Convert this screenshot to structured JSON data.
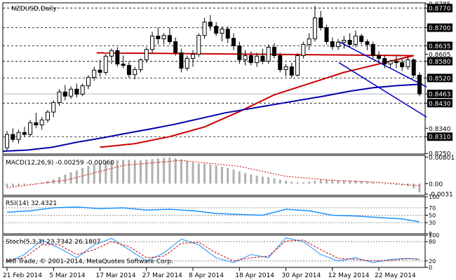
{
  "window": {
    "title": "NZDUSD,Daily",
    "footer": "Mill Trade, © 2001-2014, MetaQuotes Software Corp."
  },
  "colors": {
    "ma_red": "#cc0000",
    "ma_blue": "#0000b0",
    "channel": "#0000cc",
    "rsi": "#1e90ff",
    "stoch_main": "#1e90ff",
    "stoch_signal": "#cc0000",
    "macd_hist": "#b0b0b0",
    "macd_signal": "#cc0000",
    "price_tag_bg": "#000000",
    "bid_line": "#8fa0b4"
  },
  "chart_data": [
    {
      "type": "candlestick",
      "title": "NZDUSD,Daily",
      "ylim": [
        0.8248,
        0.8789
      ],
      "y_ticks": [
        0.8785,
        0.877,
        0.87,
        0.8635,
        0.8605,
        0.858,
        0.852,
        0.8463,
        0.843,
        0.834,
        0.831,
        0.825
      ],
      "levels": [
        0.877,
        0.87,
        0.8635,
        0.858,
        0.852,
        0.843,
        0.831
      ],
      "last_price": 0.8463,
      "x_tick_labels": [
        "21 Feb 2014",
        "5 Mar 2014",
        "17 Mar 2014",
        "27 Mar 2014",
        "8 Apr 2014",
        "18 Apr 2014",
        "30 Apr 2014",
        "12 May 2014",
        "22 May 2014"
      ],
      "x_tick_index": [
        0,
        8,
        16,
        24,
        32,
        40,
        48,
        56,
        64
      ],
      "candles": [
        [
          0.827,
          0.833,
          0.826,
          0.8318
        ],
        [
          0.8318,
          0.834,
          0.829,
          0.83
        ],
        [
          0.83,
          0.8335,
          0.8285,
          0.8325
        ],
        [
          0.8325,
          0.8345,
          0.831,
          0.8318
        ],
        [
          0.8318,
          0.837,
          0.831,
          0.836
        ],
        [
          0.836,
          0.8395,
          0.834,
          0.8352
        ],
        [
          0.8352,
          0.838,
          0.8335,
          0.837
        ],
        [
          0.837,
          0.8405,
          0.836,
          0.8398
        ],
        [
          0.8398,
          0.844,
          0.838,
          0.8432
        ],
        [
          0.8432,
          0.848,
          0.842,
          0.847
        ],
        [
          0.847,
          0.8495,
          0.844,
          0.8455
        ],
        [
          0.8455,
          0.849,
          0.8445,
          0.848
        ],
        [
          0.848,
          0.85,
          0.845,
          0.8462
        ],
        [
          0.8462,
          0.85,
          0.8455,
          0.8492
        ],
        [
          0.8492,
          0.853,
          0.848,
          0.8522
        ],
        [
          0.8522,
          0.856,
          0.851,
          0.8548
        ],
        [
          0.8548,
          0.8585,
          0.8525,
          0.854
        ],
        [
          0.854,
          0.8605,
          0.853,
          0.8598
        ],
        [
          0.8598,
          0.8625,
          0.857,
          0.8618
        ],
        [
          0.8618,
          0.863,
          0.856,
          0.857
        ],
        [
          0.857,
          0.86,
          0.8555,
          0.8565
        ],
        [
          0.8565,
          0.858,
          0.852,
          0.8532
        ],
        [
          0.8532,
          0.856,
          0.8515,
          0.855
        ],
        [
          0.855,
          0.859,
          0.854,
          0.8585
        ],
        [
          0.8585,
          0.863,
          0.8575,
          0.8622
        ],
        [
          0.8622,
          0.8685,
          0.861,
          0.867
        ],
        [
          0.867,
          0.87,
          0.864,
          0.866
        ],
        [
          0.866,
          0.868,
          0.864,
          0.8672
        ],
        [
          0.8672,
          0.87,
          0.864,
          0.865
        ],
        [
          0.865,
          0.8665,
          0.86,
          0.861
        ],
        [
          0.861,
          0.8625,
          0.854,
          0.8555
        ],
        [
          0.8555,
          0.86,
          0.8545,
          0.859
        ],
        [
          0.859,
          0.862,
          0.856,
          0.8605
        ],
        [
          0.8605,
          0.868,
          0.8595,
          0.8672
        ],
        [
          0.8672,
          0.8735,
          0.866,
          0.872
        ],
        [
          0.872,
          0.8745,
          0.869,
          0.8705
        ],
        [
          0.8705,
          0.872,
          0.867,
          0.868
        ],
        [
          0.868,
          0.8705,
          0.865,
          0.8695
        ],
        [
          0.8695,
          0.8705,
          0.8645,
          0.8662
        ],
        [
          0.8662,
          0.868,
          0.862,
          0.8635
        ],
        [
          0.8635,
          0.865,
          0.857,
          0.8585
        ],
        [
          0.8585,
          0.862,
          0.8565,
          0.86
        ],
        [
          0.86,
          0.8615,
          0.8565,
          0.8575
        ],
        [
          0.8575,
          0.861,
          0.856,
          0.8598
        ],
        [
          0.8598,
          0.8625,
          0.857,
          0.858
        ],
        [
          0.858,
          0.864,
          0.857,
          0.863
        ],
        [
          0.863,
          0.8645,
          0.859,
          0.86
        ],
        [
          0.86,
          0.861,
          0.854,
          0.855
        ],
        [
          0.855,
          0.857,
          0.8525,
          0.856
        ],
        [
          0.856,
          0.8575,
          0.852,
          0.853
        ],
        [
          0.853,
          0.861,
          0.8525,
          0.86
        ],
        [
          0.86,
          0.865,
          0.859,
          0.864
        ],
        [
          0.864,
          0.868,
          0.862,
          0.866
        ],
        [
          0.866,
          0.8778,
          0.865,
          0.8735
        ],
        [
          0.8735,
          0.876,
          0.869,
          0.87
        ],
        [
          0.87,
          0.871,
          0.864,
          0.865
        ],
        [
          0.865,
          0.8665,
          0.862,
          0.8632
        ],
        [
          0.8632,
          0.866,
          0.862,
          0.8648
        ],
        [
          0.8648,
          0.867,
          0.8625,
          0.8655
        ],
        [
          0.8655,
          0.868,
          0.863,
          0.864
        ],
        [
          0.864,
          0.869,
          0.863,
          0.867
        ],
        [
          0.867,
          0.8678,
          0.864,
          0.865
        ],
        [
          0.865,
          0.8658,
          0.862,
          0.864
        ],
        [
          0.864,
          0.865,
          0.859,
          0.86
        ],
        [
          0.86,
          0.8615,
          0.8575,
          0.859
        ],
        [
          0.859,
          0.86,
          0.8555,
          0.857
        ],
        [
          0.857,
          0.8585,
          0.8555,
          0.858
        ],
        [
          0.858,
          0.86,
          0.8555,
          0.8575
        ],
        [
          0.8575,
          0.859,
          0.8545,
          0.856
        ],
        [
          0.856,
          0.8595,
          0.855,
          0.8585
        ],
        [
          0.8585,
          0.859,
          0.852,
          0.853
        ],
        [
          0.853,
          0.854,
          0.8455,
          0.8463
        ]
      ],
      "series": [
        {
          "name": "",
          "kind": "ma",
          "color": "#cc0000",
          "points": [
            [
              16,
              0.8272
            ],
            [
              22,
              0.8285
            ],
            [
              28,
              0.831
            ],
            [
              34,
              0.8345
            ],
            [
              40,
              0.84
            ],
            [
              46,
              0.846
            ],
            [
              52,
              0.85
            ],
            [
              58,
              0.854
            ],
            [
              64,
              0.857
            ],
            [
              70,
              0.86
            ],
            [
              76,
              0.861
            ],
            [
              82,
              0.861
            ]
          ]
        },
        {
          "name": "",
          "kind": "ma",
          "color": "#0000b0",
          "points": [
            [
              0,
              0.8258
            ],
            [
              20,
              0.8262
            ],
            [
              40,
              0.8272
            ],
            [
              60,
              0.829
            ],
            [
              80,
              0.8305
            ],
            [
              100,
              0.8322
            ],
            [
              120,
              0.8338
            ],
            [
              140,
              0.8355
            ],
            [
              160,
              0.8375
            ],
            [
              180,
              0.8395
            ],
            [
              200,
              0.841
            ],
            [
              220,
              0.8425
            ],
            [
              240,
              0.844
            ],
            [
              260,
              0.8455
            ],
            [
              280,
              0.8472
            ],
            [
              300,
              0.8485
            ],
            [
              320,
              0.8493
            ],
            [
              340,
              0.8498
            ]
          ]
        }
      ],
      "channel_lines": [
        [
          [
            483,
            0.865
          ],
          [
            608,
            0.8488
          ]
        ],
        [
          [
            483,
            0.8575
          ],
          [
            608,
            0.838
          ]
        ]
      ]
    },
    {
      "type": "bar",
      "title": "MACD(12,26,9) -0.00259 -0.00060",
      "ylim": [
        -0.0035,
        0.0085
      ],
      "y_ticks": [
        0.00801,
        0.0,
        -0.0031
      ],
      "y_tick_labels": [
        "0.00801",
        "0.00",
        "-0.0031"
      ],
      "values": [
        -0.001,
        -0.0008,
        -0.0006,
        -0.0004,
        -0.0002,
        0.0001,
        0.0004,
        0.0008,
        0.0013,
        0.002,
        0.0027,
        0.0034,
        0.004,
        0.0047,
        0.0053,
        0.0058,
        0.0062,
        0.0066,
        0.0069,
        0.0071,
        0.0072,
        0.0072,
        0.0071,
        0.007,
        0.0072,
        0.0074,
        0.0076,
        0.0078,
        0.0079,
        0.0077,
        0.0073,
        0.0068,
        0.0064,
        0.0061,
        0.006,
        0.0058,
        0.0055,
        0.0051,
        0.0047,
        0.0042,
        0.0037,
        0.0032,
        0.0028,
        0.0024,
        0.0021,
        0.0019,
        0.0016,
        0.0012,
        0.0009,
        0.0006,
        0.0004,
        0.0004,
        0.0006,
        0.0009,
        0.0012,
        0.0012,
        0.0011,
        0.001,
        0.001,
        0.0009,
        0.0009,
        0.0008,
        0.0006,
        0.0004,
        0.0002,
        0.0,
        -0.0002,
        -0.0004,
        -0.0005,
        -0.0008,
        -0.0014,
        -0.0026
      ],
      "signal": [
        [
          0,
          -0.0012
        ],
        [
          10,
          0.001
        ],
        [
          20,
          0.0055
        ],
        [
          30,
          0.007
        ],
        [
          40,
          0.0052
        ],
        [
          48,
          0.0022
        ],
        [
          56,
          0.001
        ],
        [
          64,
          0.0004
        ],
        [
          71,
          -0.0006
        ]
      ]
    },
    {
      "type": "line",
      "title": "RSI(14) 32.4321",
      "ylim": [
        0,
        100
      ],
      "y_ticks": [
        100,
        70,
        50,
        30,
        0
      ],
      "series": [
        {
          "name": "",
          "color": "#1e90ff",
          "values": [
            [
              0,
              58
            ],
            [
              4,
              62
            ],
            [
              8,
              70
            ],
            [
              12,
              72
            ],
            [
              16,
              68
            ],
            [
              20,
              70
            ],
            [
              24,
              64
            ],
            [
              28,
              66
            ],
            [
              32,
              62
            ],
            [
              36,
              55
            ],
            [
              40,
              52
            ],
            [
              44,
              50
            ],
            [
              48,
              66
            ],
            [
              52,
              62
            ],
            [
              56,
              50
            ],
            [
              60,
              48
            ],
            [
              64,
              44
            ],
            [
              68,
              40
            ],
            [
              71,
              32
            ]
          ]
        }
      ]
    },
    {
      "type": "line",
      "title": "Stoch(5,3,3) 23.7342 26.1807",
      "ylim": [
        0,
        100
      ],
      "y_ticks": [
        100,
        80,
        20,
        0
      ],
      "y_tick_labels": [
        "100",
        "80",
        "20",
        "0"
      ],
      "series": [
        {
          "name": "",
          "color": "#1e90ff",
          "values": [
            [
              0,
              15
            ],
            [
              3,
              40
            ],
            [
              6,
              85
            ],
            [
              9,
              60
            ],
            [
              12,
              30
            ],
            [
              15,
              70
            ],
            [
              18,
              90
            ],
            [
              21,
              55
            ],
            [
              24,
              20
            ],
            [
              27,
              45
            ],
            [
              30,
              88
            ],
            [
              33,
              70
            ],
            [
              36,
              30
            ],
            [
              39,
              15
            ],
            [
              42,
              40
            ],
            [
              45,
              30
            ],
            [
              48,
              92
            ],
            [
              51,
              80
            ],
            [
              54,
              40
            ],
            [
              57,
              20
            ],
            [
              60,
              30
            ],
            [
              63,
              15
            ],
            [
              66,
              25
            ],
            [
              69,
              28
            ],
            [
              71,
              24
            ]
          ]
        },
        {
          "name": "",
          "color": "#cc0000",
          "values": [
            [
              0,
              20
            ],
            [
              3,
              30
            ],
            [
              6,
              70
            ],
            [
              9,
              70
            ],
            [
              12,
              40
            ],
            [
              15,
              55
            ],
            [
              18,
              80
            ],
            [
              21,
              65
            ],
            [
              24,
              30
            ],
            [
              27,
              35
            ],
            [
              30,
              75
            ],
            [
              33,
              78
            ],
            [
              36,
              45
            ],
            [
              39,
              20
            ],
            [
              42,
              30
            ],
            [
              45,
              35
            ],
            [
              48,
              82
            ],
            [
              51,
              85
            ],
            [
              54,
              55
            ],
            [
              57,
              28
            ],
            [
              60,
              25
            ],
            [
              63,
              20
            ],
            [
              66,
              22
            ],
            [
              69,
              27
            ],
            [
              71,
              26
            ]
          ]
        }
      ]
    }
  ]
}
